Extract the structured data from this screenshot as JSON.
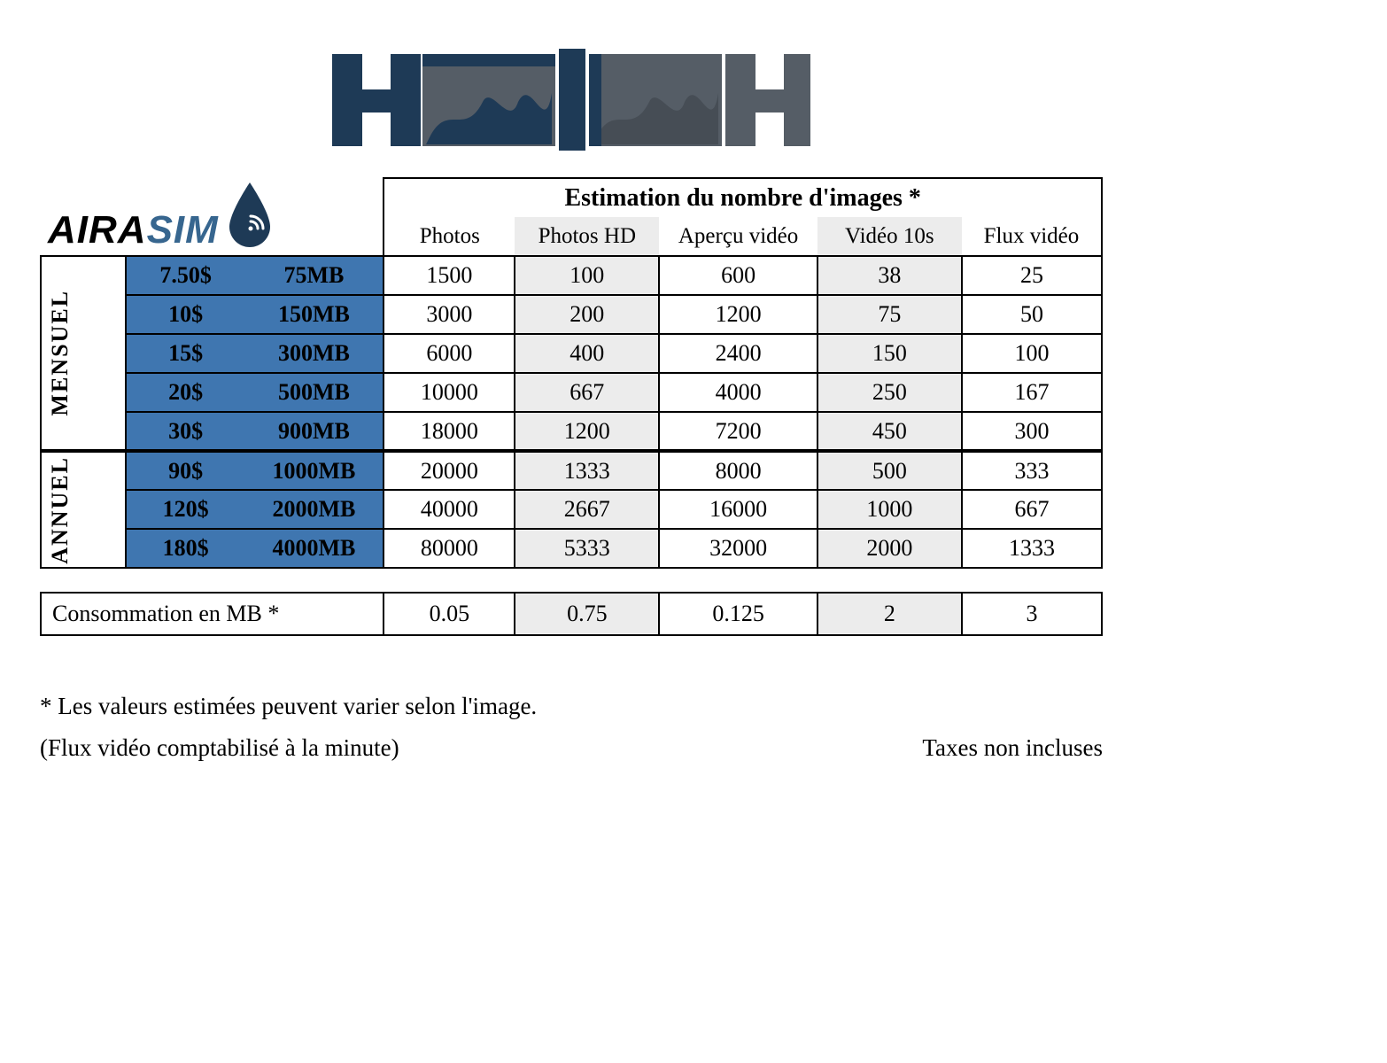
{
  "colors": {
    "plan_bg": "#3f76b0",
    "plan_stripe": "#3a6ea5",
    "stripe_bg": "#ececec",
    "page_bg": "#ffffff",
    "border": "#000000",
    "brand_dark": "#1e3a56",
    "brand_gray": "#555d66"
  },
  "brand": {
    "text_a": "AIRA",
    "text_b": "SIM"
  },
  "table": {
    "header_title": "Estimation du nombre d'images *",
    "columns": [
      "Photos",
      "Photos HD",
      "Aperçu vidéo",
      "Vidéo 10s",
      "Flux vidéo"
    ],
    "sections": [
      {
        "label": "MENSUEL",
        "rows": [
          {
            "price": "7.50$",
            "data": "75MB",
            "values": [
              "1500",
              "100",
              "600",
              "38",
              "25"
            ]
          },
          {
            "price": "10$",
            "data": "150MB",
            "values": [
              "3000",
              "200",
              "1200",
              "75",
              "50"
            ]
          },
          {
            "price": "15$",
            "data": "300MB",
            "values": [
              "6000",
              "400",
              "2400",
              "150",
              "100"
            ]
          },
          {
            "price": "20$",
            "data": "500MB",
            "values": [
              "10000",
              "667",
              "4000",
              "250",
              "167"
            ]
          },
          {
            "price": "30$",
            "data": "900MB",
            "values": [
              "18000",
              "1200",
              "7200",
              "450",
              "300"
            ]
          }
        ]
      },
      {
        "label": "ANNUEL",
        "rows": [
          {
            "price": "90$",
            "data": "1000MB",
            "values": [
              "20000",
              "1333",
              "8000",
              "500",
              "333"
            ]
          },
          {
            "price": "120$",
            "data": "2000MB",
            "values": [
              "40000",
              "2667",
              "16000",
              "1000",
              "667"
            ]
          },
          {
            "price": "180$",
            "data": "4000MB",
            "values": [
              "80000",
              "5333",
              "32000",
              "2000",
              "1333"
            ]
          }
        ]
      }
    ]
  },
  "consumption": {
    "label": "Consommation en MB *",
    "values": [
      "0.05",
      "0.75",
      "0.125",
      "2",
      "3"
    ]
  },
  "footnotes": {
    "line1": "* Les valeurs estimées peuvent varier selon l'image.",
    "line2": "(Flux vidéo comptabilisé à la minute)",
    "tax": "Taxes non incluses"
  },
  "stripe_columns": [
    1,
    3
  ]
}
